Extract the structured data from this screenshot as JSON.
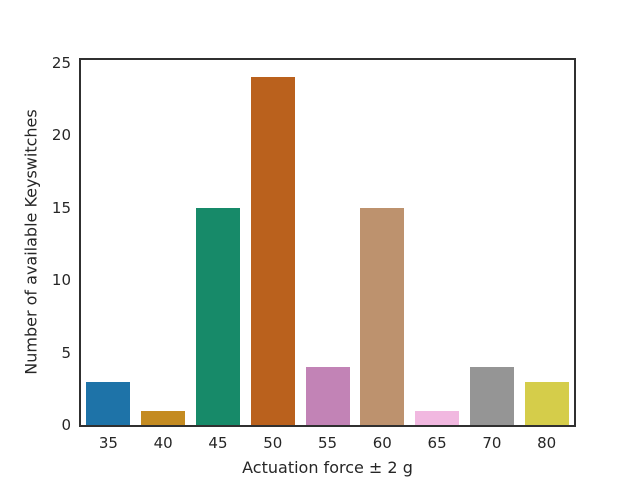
{
  "figure": {
    "background": "#ffffff",
    "text_color": "#262626",
    "spine_color": "#303030"
  },
  "chart_data": {
    "type": "bar",
    "title": "",
    "xlabel": "Actuation force ± 2 g",
    "ylabel": "Number of available Keyswitches",
    "categories": [
      "35",
      "40",
      "45",
      "50",
      "55",
      "60",
      "65",
      "70",
      "80"
    ],
    "values": [
      3,
      1,
      15,
      24,
      4,
      15,
      1,
      4,
      3
    ],
    "bar_colors": [
      "#1e73a8",
      "#c48b21",
      "#178a69",
      "#ba611d",
      "#c283b6",
      "#bd926e",
      "#f1b8e0",
      "#959595",
      "#d5cd4a"
    ],
    "yticks": [
      0,
      5,
      10,
      15,
      20,
      25
    ],
    "ylim": [
      0,
      25.2
    ],
    "grid": false,
    "legend": null
  }
}
